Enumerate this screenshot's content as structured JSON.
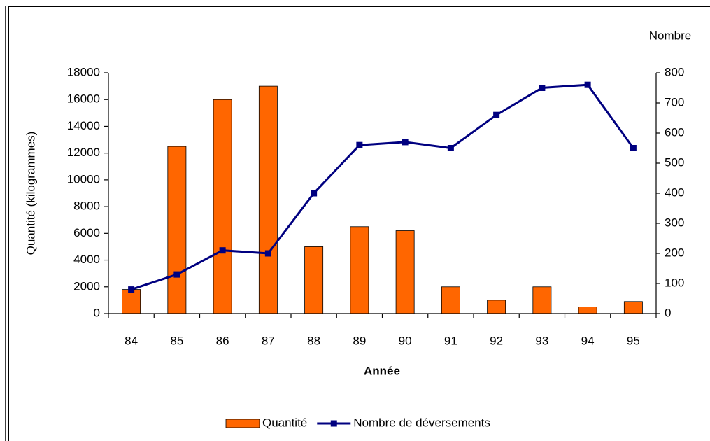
{
  "chart_data": {
    "type": "bar_line",
    "x_label": "Année",
    "y_label": "Quantité (kilogrammes)",
    "y2_label": "Nombre",
    "categories": [
      "84",
      "85",
      "86",
      "87",
      "88",
      "89",
      "90",
      "91",
      "92",
      "93",
      "94",
      "95"
    ],
    "series": [
      {
        "name": "Quantité",
        "type": "bar",
        "color": "#ff6600",
        "values": [
          1800,
          12500,
          16000,
          17000,
          5000,
          6500,
          6200,
          2000,
          1000,
          2000,
          500,
          900
        ]
      },
      {
        "name": "Nombre de déversements",
        "type": "line",
        "axis": "y2",
        "color": "#000080",
        "values": [
          80,
          130,
          210,
          200,
          400,
          560,
          570,
          550,
          660,
          750,
          760,
          550
        ]
      }
    ],
    "ylim": [
      0,
      18000
    ],
    "yticks": [
      0,
      2000,
      4000,
      6000,
      8000,
      10000,
      12000,
      14000,
      16000,
      18000
    ],
    "y2lim": [
      0,
      800
    ],
    "y2ticks": [
      0,
      100,
      200,
      300,
      400,
      500,
      600,
      700,
      800
    ],
    "legend": "bottom"
  }
}
